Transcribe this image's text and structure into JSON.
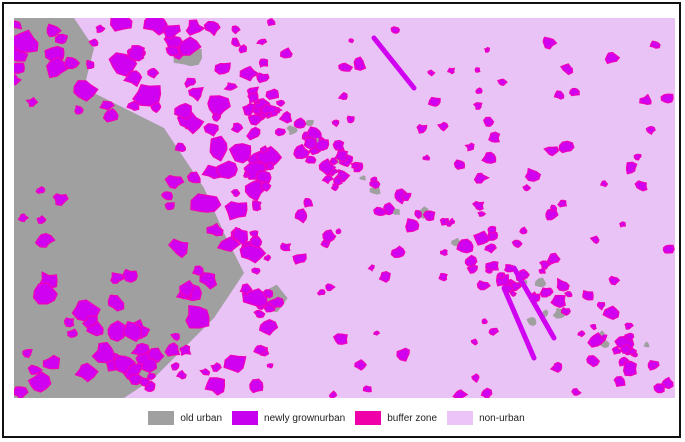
{
  "colors": {
    "non_urban": "#e9c3f6",
    "old_urban": "#a0a0a0",
    "new_urban": "#d000f0",
    "buffer": "#f000b8"
  },
  "legend": [
    {
      "label": "old urban",
      "color": "#a0a0a0"
    },
    {
      "label": "newly grownurban",
      "color": "#c800f0"
    },
    {
      "label": "buffer zone",
      "color": "#f000a8"
    },
    {
      "label": "non-urban",
      "color": "#ecc4f8"
    }
  ]
}
